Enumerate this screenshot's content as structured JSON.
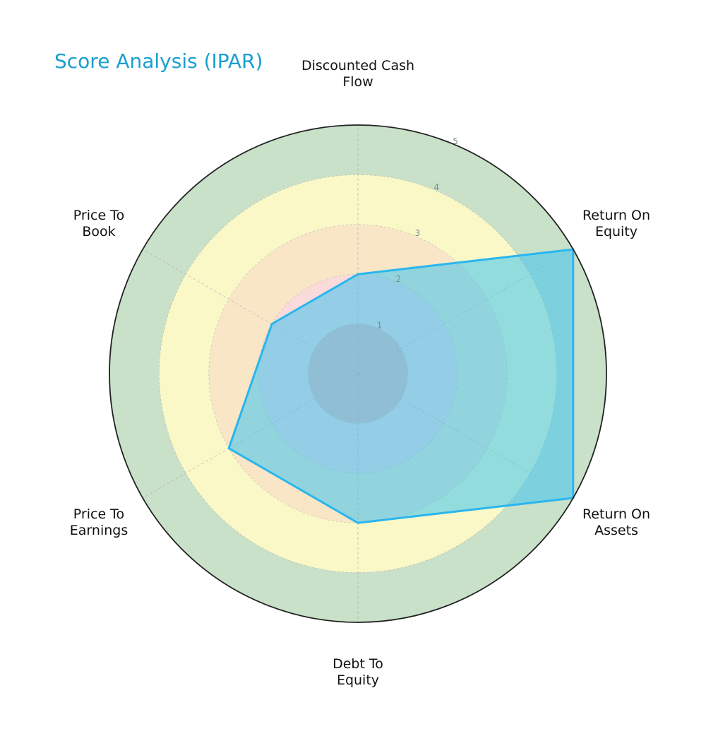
{
  "chart_data": {
    "type": "radar",
    "title": "Score Analysis (IPAR)",
    "categories": [
      "Discounted Cash\nFlow",
      "Return On\nEquity",
      "Return On\nAssets",
      "Debt To\nEquity",
      "Price To\nEarnings",
      "Price To\nBook"
    ],
    "series": [
      {
        "name": "IPAR",
        "values": [
          2,
          5,
          5,
          3,
          3,
          2
        ]
      }
    ],
    "rlim": [
      0,
      5
    ],
    "rticks": [
      1,
      2,
      3,
      4,
      5
    ],
    "bands": [
      {
        "from": 0,
        "to": 1,
        "color": "#f4b6b6"
      },
      {
        "from": 1,
        "to": 2,
        "color": "#fadadb"
      },
      {
        "from": 2,
        "to": 3,
        "color": "#f9e6c7"
      },
      {
        "from": 3,
        "to": 4,
        "color": "#fbf8c8"
      },
      {
        "from": 4,
        "to": 5,
        "color": "#c9e0c9"
      }
    ],
    "fill_color": "#3ec4ee",
    "fill_opacity": 0.55,
    "line_color": "#29b6ee",
    "grid": true
  },
  "labels": {
    "title": "Score Analysis (IPAR)",
    "dcf": "Discounted Cash\nFlow",
    "roe": "Return On\nEquity",
    "roa": "Return On\nAssets",
    "de": "Debt To\nEquity",
    "pe": "Price To\nEarnings",
    "pb": "Price To\nBook"
  }
}
